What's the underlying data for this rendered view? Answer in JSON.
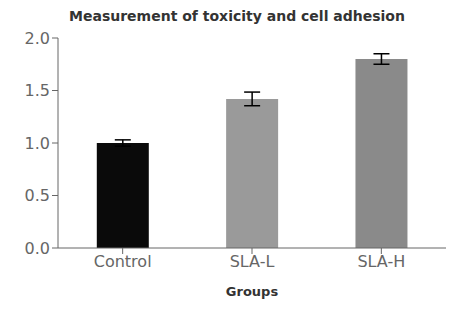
{
  "chart_data": {
    "type": "bar",
    "title": "Measurement of toxicity and cell adhesion",
    "xlabel": "Groups",
    "categories": [
      "Control",
      "SLA-L",
      "SLA-H"
    ],
    "values": [
      1.0,
      1.42,
      1.8
    ],
    "errors": [
      0.03,
      0.065,
      0.05
    ],
    "colors": [
      "#0a0a0a",
      "#9a9a9a",
      "#8a8a8a"
    ],
    "ylim": [
      0,
      2.0
    ],
    "yticks": [
      {
        "value": 0,
        "label": "0.0"
      },
      0.5,
      {
        "value": 1,
        "label": "1.0"
      },
      1.5,
      {
        "value": 2,
        "label": "2.0"
      }
    ],
    "grid": false
  }
}
